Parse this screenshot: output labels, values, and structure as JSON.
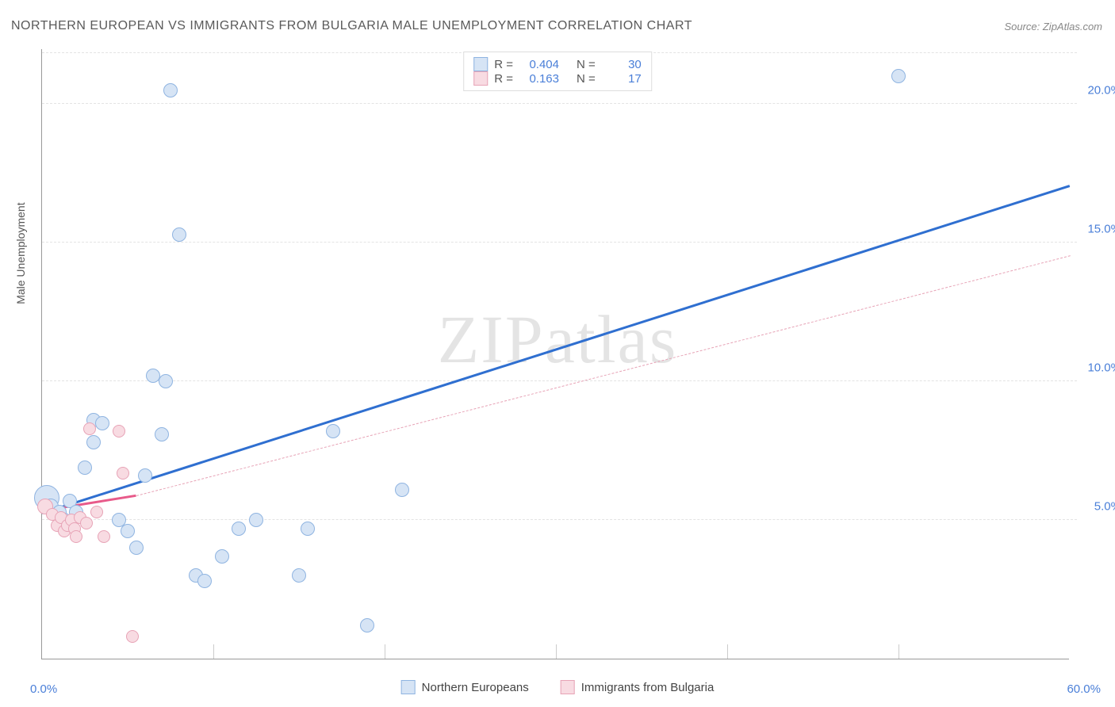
{
  "title": "NORTHERN EUROPEAN VS IMMIGRANTS FROM BULGARIA MALE UNEMPLOYMENT CORRELATION CHART",
  "source": "Source: ZipAtlas.com",
  "watermark": "ZIPatlas",
  "ylabel": "Male Unemployment",
  "chart": {
    "type": "scatter",
    "xlim": [
      0,
      60
    ],
    "ylim": [
      0,
      22
    ],
    "xticks": [
      0,
      60
    ],
    "xticklabels": [
      "0.0%",
      "60.0%"
    ],
    "yticks": [
      5,
      10,
      15,
      20
    ],
    "yticklabels": [
      "5.0%",
      "10.0%",
      "15.0%",
      "20.0%"
    ],
    "x_minor_seps": [
      10,
      20,
      30,
      40,
      50
    ],
    "grid_color": "#e3e3e3",
    "axis_color": "#999999",
    "tick_font_color": "#4a7fd8",
    "tick_fontsize": 15,
    "title_fontsize": 16,
    "title_color": "#5a5a5a",
    "label_fontsize": 14,
    "background_color": "#ffffff",
    "series": [
      {
        "name": "Northern Europeans",
        "fill": "#d6e4f5",
        "stroke": "#8fb4e1",
        "marker_radius_px": 9,
        "R": "0.404",
        "N": "30",
        "trend": {
          "x1": 0,
          "y1": 5.2,
          "x2": 60,
          "y2": 17.0,
          "color": "#2f6fd0",
          "width": 3.5,
          "dash": "solid"
        },
        "points": [
          {
            "x": 0.3,
            "y": 5.8,
            "r": 16
          },
          {
            "x": 0.5,
            "y": 5.5,
            "r": 10
          },
          {
            "x": 1.0,
            "y": 5.3,
            "r": 9
          },
          {
            "x": 1.3,
            "y": 5.0,
            "r": 9
          },
          {
            "x": 1.6,
            "y": 5.7,
            "r": 9
          },
          {
            "x": 2.0,
            "y": 5.3,
            "r": 9
          },
          {
            "x": 2.5,
            "y": 6.9,
            "r": 9
          },
          {
            "x": 3.0,
            "y": 8.6,
            "r": 9
          },
          {
            "x": 3.5,
            "y": 8.5,
            "r": 9
          },
          {
            "x": 3.0,
            "y": 7.8,
            "r": 9
          },
          {
            "x": 4.5,
            "y": 5.0,
            "r": 9
          },
          {
            "x": 5.0,
            "y": 4.6,
            "r": 9
          },
          {
            "x": 5.5,
            "y": 4.0,
            "r": 9
          },
          {
            "x": 6.0,
            "y": 6.6,
            "r": 9
          },
          {
            "x": 6.5,
            "y": 10.2,
            "r": 9
          },
          {
            "x": 7.2,
            "y": 10.0,
            "r": 9
          },
          {
            "x": 7.0,
            "y": 8.1,
            "r": 9
          },
          {
            "x": 7.5,
            "y": 20.5,
            "r": 9
          },
          {
            "x": 8.0,
            "y": 15.3,
            "r": 9
          },
          {
            "x": 9.0,
            "y": 3.0,
            "r": 9
          },
          {
            "x": 9.5,
            "y": 2.8,
            "r": 9
          },
          {
            "x": 10.5,
            "y": 3.7,
            "r": 9
          },
          {
            "x": 11.5,
            "y": 4.7,
            "r": 9
          },
          {
            "x": 12.5,
            "y": 5.0,
            "r": 9
          },
          {
            "x": 15.0,
            "y": 3.0,
            "r": 9
          },
          {
            "x": 15.5,
            "y": 4.7,
            "r": 9
          },
          {
            "x": 17.0,
            "y": 8.2,
            "r": 9
          },
          {
            "x": 19.0,
            "y": 1.2,
            "r": 9
          },
          {
            "x": 21.0,
            "y": 6.1,
            "r": 9
          },
          {
            "x": 50.0,
            "y": 21.0,
            "r": 9
          }
        ]
      },
      {
        "name": "Immigrants from Bulgaria",
        "fill": "#f8dbe2",
        "stroke": "#e7a3b6",
        "marker_radius_px": 8,
        "R": "0.163",
        "N": "17",
        "trend_solid": {
          "x1": 0,
          "y1": 5.3,
          "x2": 5.5,
          "y2": 5.85,
          "color": "#e85a8a",
          "width": 3,
          "dash": "solid"
        },
        "trend": {
          "x1": 5.5,
          "y1": 5.85,
          "x2": 60,
          "y2": 14.5,
          "color": "#e7a3b6",
          "width": 1.2,
          "dash": "5,5"
        },
        "points": [
          {
            "x": 0.2,
            "y": 5.5,
            "r": 10
          },
          {
            "x": 0.6,
            "y": 5.2,
            "r": 8
          },
          {
            "x": 0.9,
            "y": 4.8,
            "r": 8
          },
          {
            "x": 1.1,
            "y": 5.1,
            "r": 8
          },
          {
            "x": 1.3,
            "y": 4.6,
            "r": 8
          },
          {
            "x": 1.5,
            "y": 4.8,
            "r": 8
          },
          {
            "x": 1.7,
            "y": 5.0,
            "r": 8
          },
          {
            "x": 1.9,
            "y": 4.7,
            "r": 8
          },
          {
            "x": 2.0,
            "y": 4.4,
            "r": 8
          },
          {
            "x": 2.2,
            "y": 5.1,
            "r": 8
          },
          {
            "x": 2.6,
            "y": 4.9,
            "r": 8
          },
          {
            "x": 2.8,
            "y": 8.3,
            "r": 8
          },
          {
            "x": 3.2,
            "y": 5.3,
            "r": 8
          },
          {
            "x": 3.6,
            "y": 4.4,
            "r": 8
          },
          {
            "x": 4.5,
            "y": 8.2,
            "r": 8
          },
          {
            "x": 4.7,
            "y": 6.7,
            "r": 8
          },
          {
            "x": 5.3,
            "y": 0.8,
            "r": 8
          }
        ]
      }
    ],
    "legend_bottom": [
      {
        "swatch_fill": "#d6e4f5",
        "swatch_stroke": "#8fb4e1",
        "label": "Northern Europeans"
      },
      {
        "swatch_fill": "#f8dbe2",
        "swatch_stroke": "#e7a3b6",
        "label": "Immigrants from Bulgaria"
      }
    ]
  }
}
